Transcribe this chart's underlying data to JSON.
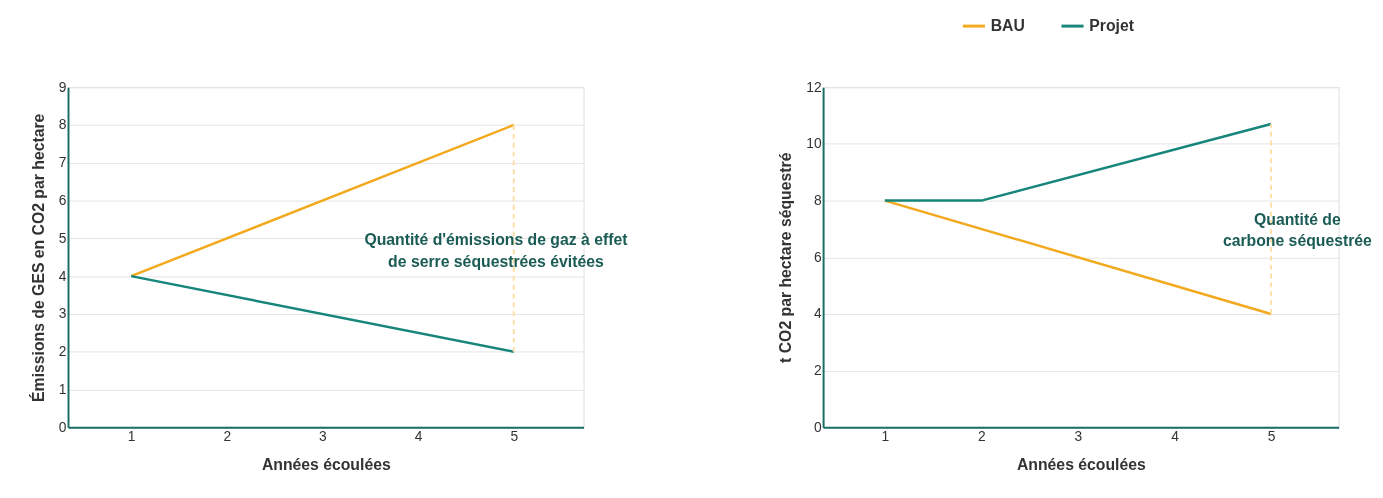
{
  "chart_data": [
    {
      "type": "line",
      "xlabel": "Années écoulées",
      "ylabel": "Émissions de GES en CO2 par hectare",
      "xlim": [
        0.34,
        5.73
      ],
      "xticks": [
        1,
        2,
        3,
        4,
        5
      ],
      "ylim": [
        0,
        9
      ],
      "yticks": [
        0,
        1,
        2,
        3,
        4,
        5,
        6,
        7,
        8,
        9
      ],
      "grid": "y",
      "series": [
        {
          "name": "BAU",
          "color": "#f2a91d",
          "x": [
            1,
            5
          ],
          "values": [
            4,
            8
          ]
        },
        {
          "name": "Projet",
          "color": "#16857a",
          "x": [
            1,
            5
          ],
          "values": [
            4,
            2
          ]
        },
        {
          "color": "#fde0a8",
          "x": [
            5,
            5
          ],
          "values": [
            2,
            8
          ],
          "line_style": "dashed"
        }
      ],
      "legend": "top right",
      "annotations": [
        "Quantité d'émissions de gaz à effet\nde serre séquestrées évitées"
      ]
    },
    {
      "type": "line",
      "xlabel": "Années écoulées",
      "ylabel": "t CO2 par hectare séquestré",
      "xlim": [
        0.36,
        5.7
      ],
      "xticks": [
        1,
        2,
        3,
        4,
        5
      ],
      "ylim": [
        0,
        12
      ],
      "yticks": [
        0,
        2,
        4,
        6,
        8,
        10,
        12
      ],
      "grid": "y",
      "legend": "top right",
      "series": [
        {
          "name": "BAU",
          "color": "#f2a91d",
          "x": [
            1,
            5
          ],
          "values": [
            8,
            4
          ]
        },
        {
          "name": "Projet",
          "color": "#16857a",
          "x": [
            1,
            2,
            5
          ],
          "values": [
            8,
            8,
            10.7
          ]
        },
        {
          "color": "#fde0a8",
          "x": [
            5,
            5
          ],
          "values": [
            4,
            10.7
          ],
          "line_style": "dashed"
        }
      ],
      "annotations": [
        "Quantité de\ncarbone séquestrée"
      ]
    }
  ]
}
